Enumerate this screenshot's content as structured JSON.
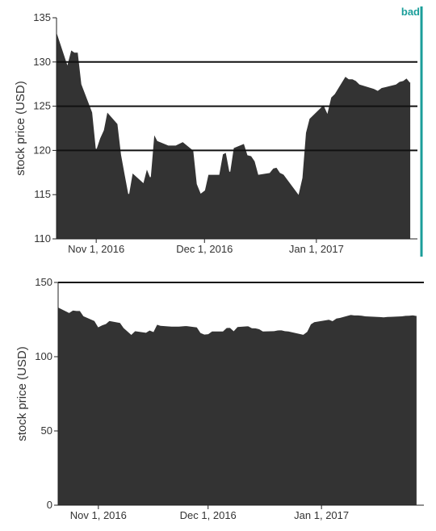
{
  "colors": {
    "area": "#333333",
    "accent": "#1b9e9a",
    "axis": "#222222"
  },
  "chart_data": [
    {
      "type": "area",
      "flag_label": "bad",
      "ylabel": "stock price (USD)",
      "ylim": [
        110,
        135
      ],
      "yticks": [
        "110",
        "115",
        "120",
        "125",
        "130",
        "135"
      ],
      "gridlines": [
        120,
        125,
        130
      ],
      "xlim": [
        "2016-10-21",
        "2017-01-29"
      ],
      "xticks": [
        {
          "date": "2016-11-01",
          "label": "Nov 1, 2016"
        },
        {
          "date": "2016-12-01",
          "label": "Dec 1, 2016"
        },
        {
          "date": "2017-01-01",
          "label": "Jan 1, 2017"
        }
      ]
    },
    {
      "type": "area",
      "ylabel": "stock price (USD)",
      "ylim": [
        0,
        150
      ],
      "yticks": [
        "0",
        "50",
        "100",
        "150"
      ],
      "gridlines": [
        150
      ],
      "xlim": [
        "2016-10-21",
        "2017-01-29"
      ],
      "xticks": [
        {
          "date": "2016-11-01",
          "label": "Nov 1, 2016"
        },
        {
          "date": "2016-12-01",
          "label": "Dec 1, 2016"
        },
        {
          "date": "2017-01-01",
          "label": "Jan 1, 2017"
        }
      ]
    }
  ],
  "series": {
    "x": [
      "2016-10-21",
      "2016-10-24",
      "2016-10-25",
      "2016-10-26",
      "2016-10-27",
      "2016-10-28",
      "2016-10-31",
      "2016-11-01",
      "2016-11-02",
      "2016-11-03",
      "2016-11-04",
      "2016-11-07",
      "2016-11-08",
      "2016-11-09",
      "2016-11-10",
      "2016-11-11",
      "2016-11-14",
      "2016-11-15",
      "2016-11-16",
      "2016-11-17",
      "2016-11-18",
      "2016-11-21",
      "2016-11-22",
      "2016-11-23",
      "2016-11-25",
      "2016-11-28",
      "2016-11-29",
      "2016-11-30",
      "2016-12-01",
      "2016-12-02",
      "2016-12-05",
      "2016-12-06",
      "2016-12-07",
      "2016-12-08",
      "2016-12-09",
      "2016-12-12",
      "2016-12-13",
      "2016-12-14",
      "2016-12-15",
      "2016-12-16",
      "2016-12-19",
      "2016-12-20",
      "2016-12-21",
      "2016-12-22",
      "2016-12-23",
      "2016-12-27",
      "2016-12-28",
      "2016-12-29",
      "2016-12-30",
      "2017-01-03",
      "2017-01-04",
      "2017-01-05",
      "2017-01-06",
      "2017-01-09",
      "2017-01-10",
      "2017-01-11",
      "2017-01-12",
      "2017-01-13",
      "2017-01-17",
      "2017-01-18",
      "2017-01-19",
      "2017-01-20",
      "2017-01-23",
      "2017-01-24",
      "2017-01-25",
      "2017-01-26",
      "2017-01-27"
    ],
    "y": [
      133.5,
      129.8,
      131.4,
      131.1,
      131.1,
      127.5,
      124.3,
      120.2,
      121.4,
      122.3,
      124.4,
      123.0,
      119.5,
      117.3,
      115.1,
      117.5,
      116.4,
      118.0,
      117.0,
      121.9,
      121.1,
      120.6,
      120.6,
      120.6,
      121.0,
      120.0,
      116.2,
      115.2,
      115.5,
      117.3,
      117.3,
      119.6,
      119.8,
      117.6,
      120.3,
      120.8,
      119.5,
      119.4,
      118.8,
      117.3,
      117.5,
      118.0,
      118.1,
      117.5,
      117.3,
      115.1,
      116.9,
      122.0,
      123.6,
      125.2,
      124.3,
      126.0,
      126.4,
      128.4,
      128.1,
      128.1,
      127.9,
      127.5,
      127.0,
      126.8,
      127.1,
      127.2,
      127.5,
      127.8,
      127.9,
      128.2,
      127.7
    ]
  }
}
